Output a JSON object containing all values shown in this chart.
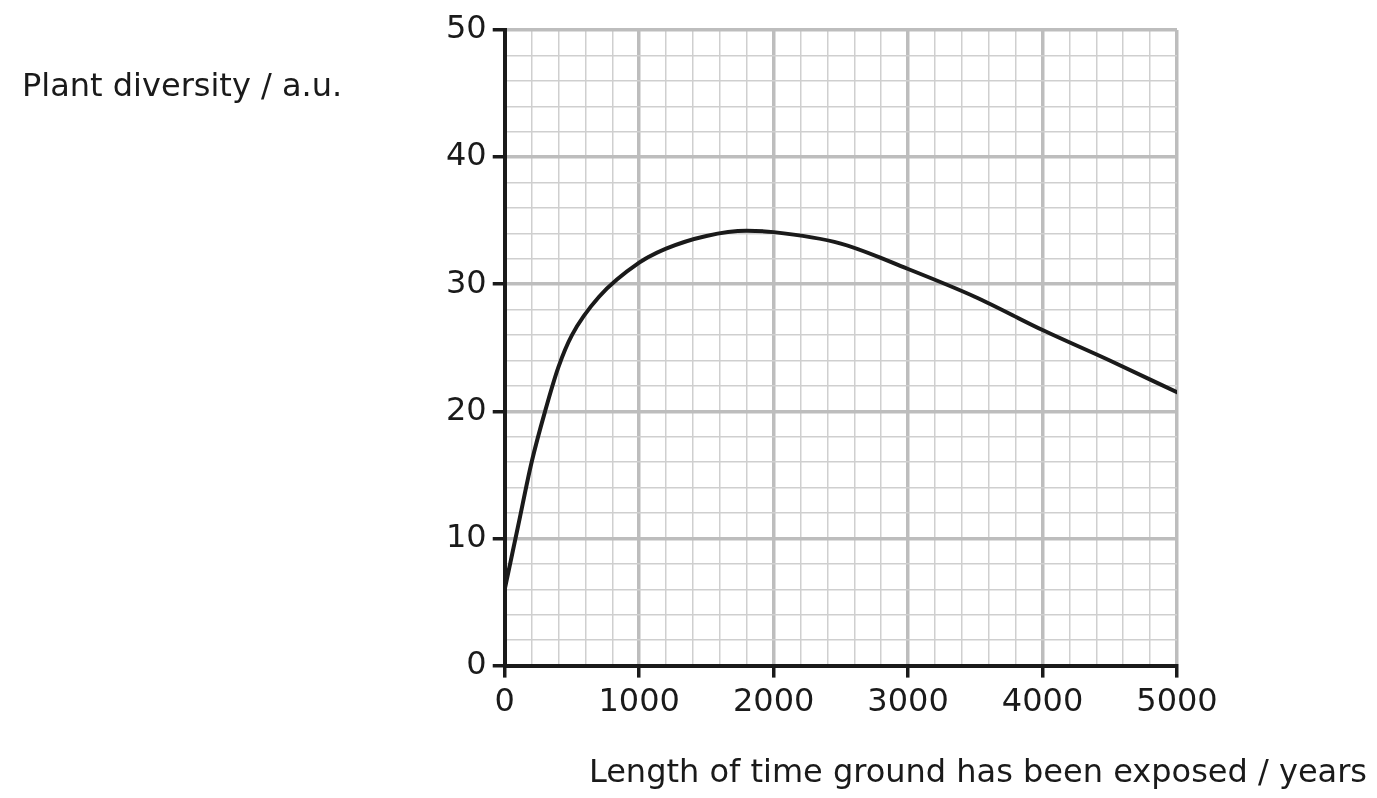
{
  "chart_data": {
    "type": "line",
    "xlabel": "Length of time ground has been exposed / years",
    "ylabel": "Plant diversity / a.u.",
    "x": [
      0,
      100,
      200,
      300,
      400,
      500,
      700,
      1000,
      1200,
      1500,
      1800,
      2000,
      2500,
      3000,
      3500,
      4000,
      4500,
      5000
    ],
    "series": [
      {
        "color": "#1a1a1a",
        "values": [
          6,
          11,
          16,
          20,
          23.5,
          26,
          29,
          31.7,
          32.8,
          33.8,
          34.2,
          34.1,
          33.2,
          31.2,
          29,
          26.4,
          24,
          21.5
        ]
      }
    ],
    "xlim": [
      0,
      5000
    ],
    "ylim": [
      0,
      50
    ],
    "xticks": [
      0,
      {
        "value": 200,
        "label": null
      },
      {
        "value": 400,
        "label": null
      },
      {
        "value": 600,
        "label": null
      },
      {
        "value": 800,
        "label": null
      },
      1000,
      {
        "value": 1200,
        "label": null
      },
      {
        "value": 1400,
        "label": null
      },
      {
        "value": 1600,
        "label": null
      },
      {
        "value": 1800,
        "label": null
      },
      2000,
      {
        "value": 2200,
        "label": null
      },
      {
        "value": 2400,
        "label": null
      },
      {
        "value": 2600,
        "label": null
      },
      {
        "value": 2800,
        "label": null
      },
      3000,
      {
        "value": 3200,
        "label": null
      },
      {
        "value": 3400,
        "label": null
      },
      {
        "value": 3600,
        "label": null
      },
      {
        "value": 3800,
        "label": null
      },
      4000,
      {
        "value": 4200,
        "label": null
      },
      {
        "value": 4400,
        "label": null
      },
      {
        "value": 4600,
        "label": null
      },
      {
        "value": 4800,
        "label": null
      },
      5000
    ],
    "yticks": [
      0,
      {
        "value": 2,
        "label": null
      },
      {
        "value": 4,
        "label": null
      },
      {
        "value": 6,
        "label": null
      },
      {
        "value": 8,
        "label": null
      },
      10,
      {
        "value": 12,
        "label": null
      },
      {
        "value": 14,
        "label": null
      },
      {
        "value": 16,
        "label": null
      },
      {
        "value": 18,
        "label": null
      },
      20,
      {
        "value": 22,
        "label": null
      },
      {
        "value": 24,
        "label": null
      },
      {
        "value": 26,
        "label": null
      },
      {
        "value": 28,
        "label": null
      },
      30,
      {
        "value": 32,
        "label": null
      },
      {
        "value": 34,
        "label": null
      },
      {
        "value": 36,
        "label": null
      },
      {
        "value": 38,
        "label": null
      },
      40,
      {
        "value": 42,
        "label": null
      },
      {
        "value": 44,
        "label": null
      },
      {
        "value": 46,
        "label": null
      },
      {
        "value": 48,
        "label": null
      },
      50
    ],
    "grid": true,
    "legend": false,
    "marker": "none",
    "line_style": "solid"
  }
}
